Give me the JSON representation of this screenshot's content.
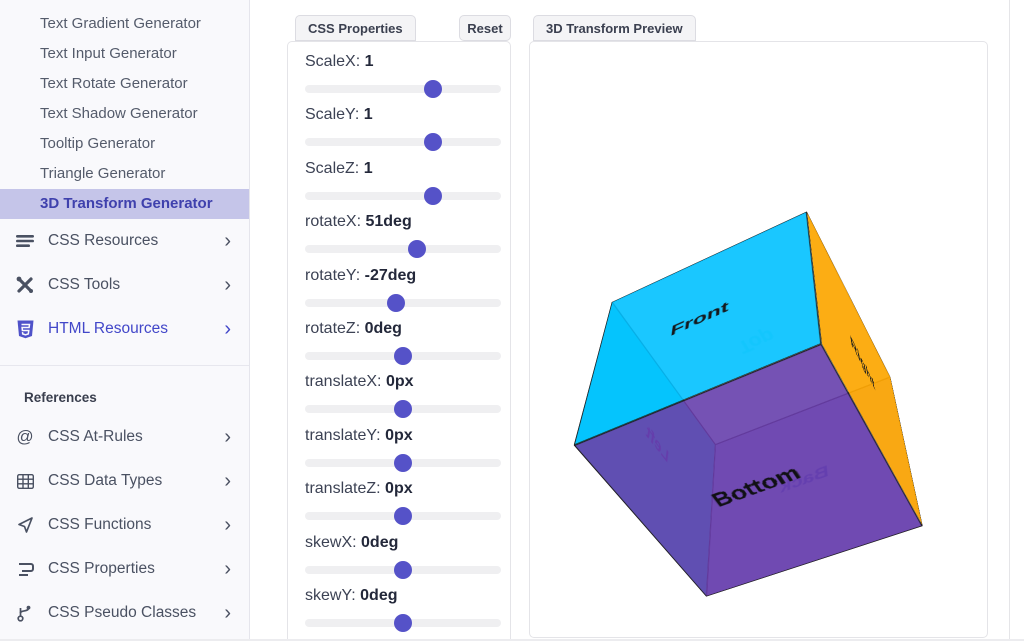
{
  "sidebar": {
    "generator_links": [
      {
        "label": "Text Gradient Generator",
        "active": false
      },
      {
        "label": "Text Input Generator",
        "active": false
      },
      {
        "label": "Text Rotate Generator",
        "active": false
      },
      {
        "label": "Text Shadow Generator",
        "active": false
      },
      {
        "label": "Tooltip Generator",
        "active": false
      },
      {
        "label": "Triangle Generator",
        "active": false
      },
      {
        "label": "3D Transform Generator",
        "active": true
      }
    ],
    "menu_items": [
      {
        "icon": "menu-lines-icon",
        "label": "CSS Resources"
      },
      {
        "icon": "tools-icon",
        "label": "CSS Tools"
      },
      {
        "icon": "html5-icon",
        "label": "HTML Resources",
        "accent": true
      }
    ],
    "references_header": "References",
    "reference_items": [
      {
        "icon": "at-rules-icon",
        "label": "CSS At-Rules"
      },
      {
        "icon": "table-icon",
        "label": "CSS Data Types"
      },
      {
        "icon": "functions-icon",
        "label": "CSS Functions"
      },
      {
        "icon": "css-properties-icon",
        "label": "CSS Properties"
      },
      {
        "icon": "pseudo-classes-icon",
        "label": "CSS Pseudo Classes"
      }
    ],
    "chevron": "›"
  },
  "properties_panel": {
    "title": "CSS Properties",
    "reset_label": "Reset",
    "sliders": [
      {
        "name": "ScaleX:",
        "value": "1",
        "percent": 65.5
      },
      {
        "name": "ScaleY:",
        "value": "1",
        "percent": 65.5
      },
      {
        "name": "ScaleZ:",
        "value": "1",
        "percent": 65.5
      },
      {
        "name": "rotateX:",
        "value": "51deg",
        "percent": 57
      },
      {
        "name": "rotateY:",
        "value": "-27deg",
        "percent": 46.5
      },
      {
        "name": "rotateZ:",
        "value": "0deg",
        "percent": 50
      },
      {
        "name": "translateX:",
        "value": "0px",
        "percent": 50
      },
      {
        "name": "translateY:",
        "value": "0px",
        "percent": 50
      },
      {
        "name": "translateZ:",
        "value": "0px",
        "percent": 50
      },
      {
        "name": "skewX:",
        "value": "0deg",
        "percent": 50
      },
      {
        "name": "skewY:",
        "value": "0deg",
        "percent": 50
      }
    ]
  },
  "preview_panel": {
    "title": "3D Transform Preview",
    "transform": {
      "rotateX": "51deg",
      "rotateY": "-27deg"
    },
    "faces": [
      {
        "id": "front",
        "label": "Front",
        "color": "rgba(0,191,255,0.88)",
        "text_color": "#15181c"
      },
      {
        "id": "back",
        "label": "Back",
        "color": "rgba(100,125,222,0.55)",
        "text_color": "#4a5fd0"
      },
      {
        "id": "right",
        "label": "Right",
        "color": "rgba(255,166,0,0.92)",
        "text_color": "#1d1d1d"
      },
      {
        "id": "left",
        "label": "Left",
        "color": "rgba(0,225,230,0.85)",
        "text_color": "#4b4bb0"
      },
      {
        "id": "top",
        "label": "Top",
        "color": "rgba(0,229,229,0.18)",
        "text_color": "#9af0ec"
      },
      {
        "id": "bottom",
        "label": "Bottom",
        "color": "rgba(104,58,170,0.88)",
        "text_color": "#101014"
      }
    ]
  },
  "colors": {
    "accent_indigo": "#5552c8",
    "active_item_bg": "#c5c5e9",
    "active_item_text": "#3f41ad",
    "sidebar_bg": "#f9f9fc",
    "panel_border": "#e4e4e8",
    "slider_track": "#efeff1"
  }
}
